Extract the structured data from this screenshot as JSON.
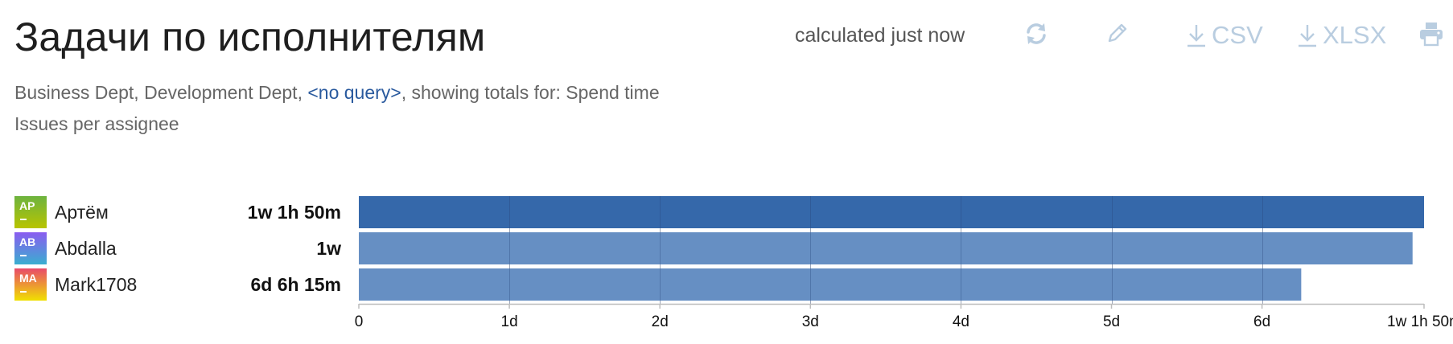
{
  "header": {
    "title": "Задачи по исполнителям",
    "calculated": "calculated just now",
    "tools": {
      "refresh_icon": "refresh-icon",
      "edit_icon": "pencil-icon",
      "csv_label": "CSV",
      "xlsx_label": "XLSX",
      "print_icon": "printer-icon"
    }
  },
  "filter": {
    "prefix": "Business Dept, Development Dept, ",
    "query": "<no query>",
    "suffix": ", showing totals for: Spend time"
  },
  "subtitle": "Issues per assignee",
  "colors": {
    "bar_primary": "#3568aa",
    "bar_secondary": "#668fc3",
    "icon": "#b9cde0",
    "link": "#2a5a9e"
  },
  "assignees": [
    {
      "initials": "AP",
      "name": "Артём",
      "total": "1w 1h 50m"
    },
    {
      "initials": "AB",
      "name": "Abdalla",
      "total": "1w"
    },
    {
      "initials": "MA",
      "name": "Mark1708",
      "total": "6d 6h 15m"
    }
  ],
  "chart_data": {
    "type": "bar",
    "orientation": "horizontal",
    "categories": [
      "Артём",
      "Abdalla",
      "Mark1708"
    ],
    "values_hours": [
      169.83,
      168,
      150.25
    ],
    "x_ticks": [
      "0",
      "1d",
      "2d",
      "3d",
      "4d",
      "5d",
      "6d",
      "1w 1h 50m"
    ],
    "x_tick_hours": [
      0,
      24,
      48,
      72,
      96,
      120,
      144,
      169.83
    ],
    "xlim_hours": [
      0,
      169.83
    ],
    "grid": true
  }
}
